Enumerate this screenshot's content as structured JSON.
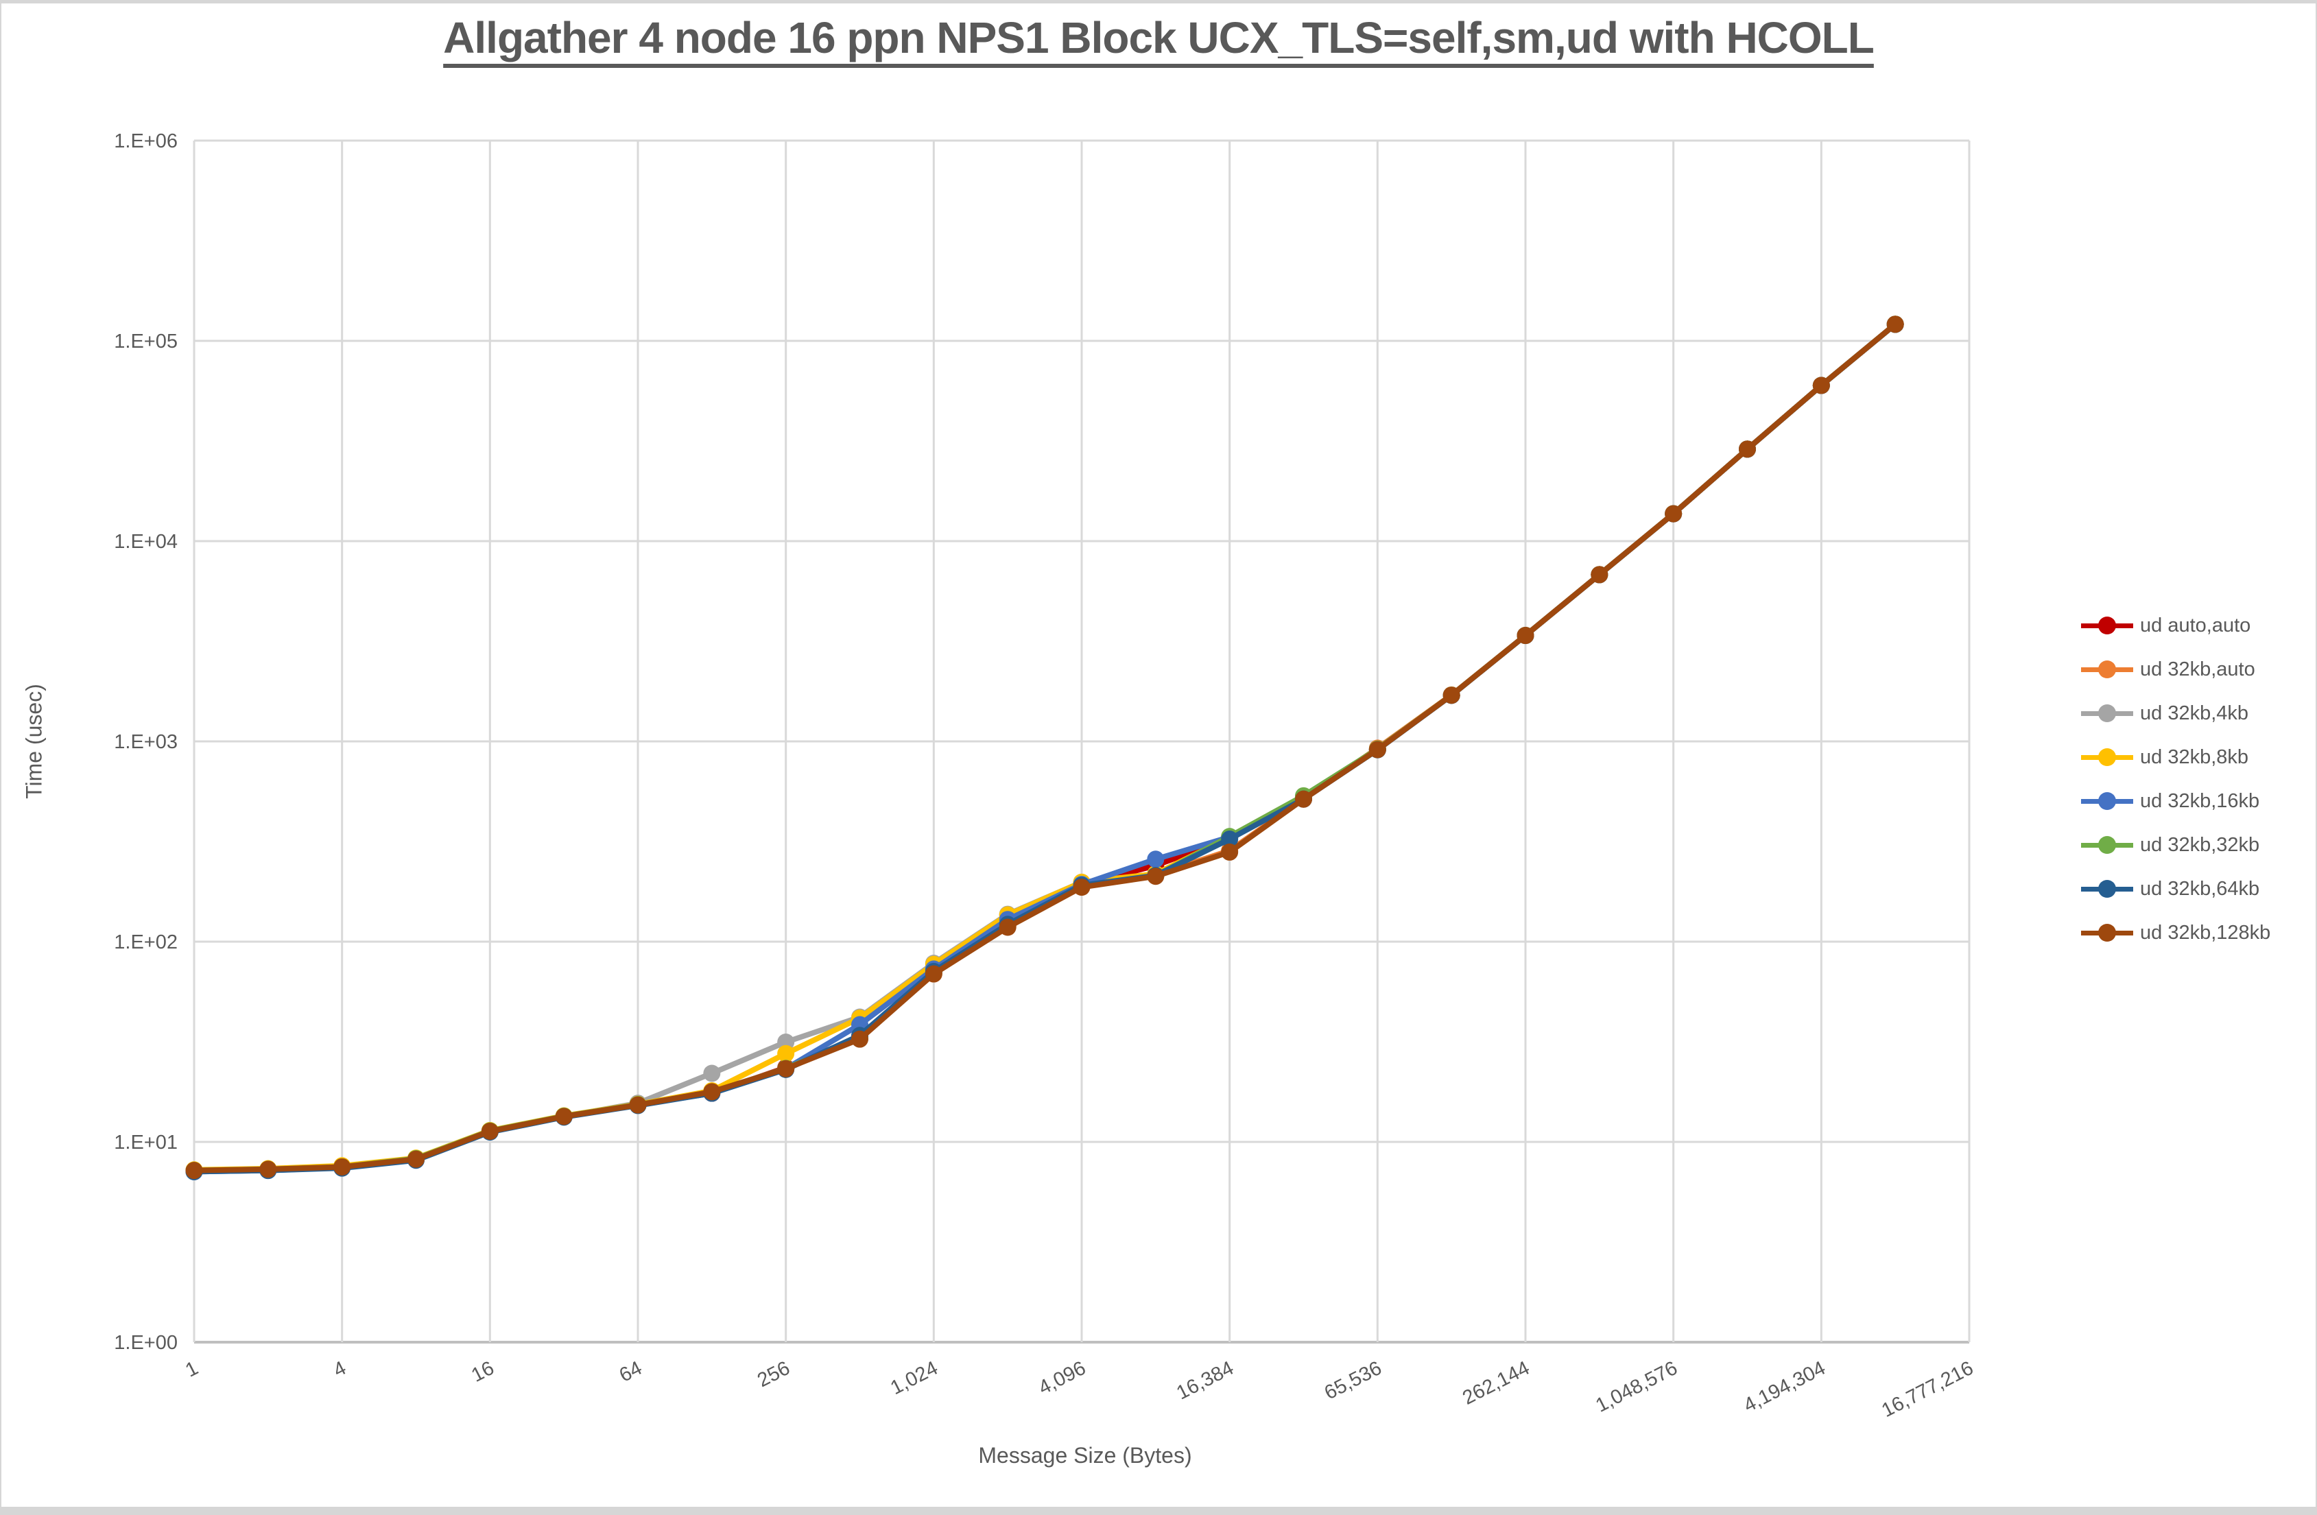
{
  "title": "Allgather 4 node 16 ppn NPS1 Block UCX_TLS=self,sm,ud with HCOLL",
  "y_axis": {
    "title": "Time (usec)",
    "tick_labels": [
      "1.E+00",
      "1.E+01",
      "1.E+02",
      "1.E+03",
      "1.E+04",
      "1.E+05",
      "1.E+06"
    ]
  },
  "x_axis": {
    "title": "Message Size (Bytes)",
    "tick_labels": [
      "1",
      "4",
      "16",
      "64",
      "256",
      "1,024",
      "4,096",
      "16,384",
      "65,536",
      "262,144",
      "1,048,576",
      "4,194,304",
      "16,777,216"
    ]
  },
  "legend": {
    "items": [
      {
        "label": "ud auto,auto",
        "color": "#C00000"
      },
      {
        "label": "ud 32kb,auto",
        "color": "#ED7D31"
      },
      {
        "label": "ud 32kb,4kb",
        "color": "#A5A5A5"
      },
      {
        "label": "ud 32kb,8kb",
        "color": "#FFC000"
      },
      {
        "label": "ud 32kb,16kb",
        "color": "#4472C4"
      },
      {
        "label": "ud 32kb,32kb",
        "color": "#70AD47"
      },
      {
        "label": "ud 32kb,64kb",
        "color": "#255E91"
      },
      {
        "label": "ud 32kb,128kb",
        "color": "#9E480E"
      }
    ]
  },
  "chart_data": {
    "type": "line",
    "x_scale": "log2-category",
    "y_scale": "log10",
    "title": "Allgather 4 node 16 ppn NPS1 Block UCX_TLS=self,sm,ud with HCOLL",
    "xlabel": "Message Size (Bytes)",
    "ylabel": "Time (usec)",
    "ylim": [
      1,
      1000000
    ],
    "x_axis_slots": 25,
    "x_axis_last_category": 16777216,
    "grid": true,
    "legend_position": "right",
    "categories": [
      1,
      2,
      4,
      8,
      16,
      32,
      64,
      128,
      256,
      512,
      1024,
      2048,
      4096,
      8192,
      16384,
      32768,
      65536,
      131072,
      262144,
      524288,
      1048576,
      2097152,
      4194304,
      8388608
    ],
    "series": [
      {
        "name": "ud auto,auto",
        "color": "#C00000",
        "values": [
          7.2,
          7.3,
          7.5,
          8.2,
          11.3,
          13.4,
          15.3,
          17.5,
          23.5,
          33.5,
          70,
          120,
          192,
          240,
          330,
          515,
          910,
          1700,
          3380,
          6800,
          13700,
          28800,
          59900,
          121000
        ]
      },
      {
        "name": "ud 32kb,auto",
        "color": "#ED7D31",
        "values": [
          7.2,
          7.3,
          7.5,
          8.2,
          11.3,
          13.4,
          15.3,
          17.6,
          23.2,
          33.0,
          69,
          119,
          189,
          215,
          285,
          515,
          925,
          1705,
          3385,
          6810,
          13720,
          28830,
          59950,
          121100
        ]
      },
      {
        "name": "ud 32kb,4kb",
        "color": "#A5A5A5",
        "values": [
          7.2,
          7.3,
          7.5,
          8.2,
          11.3,
          13.4,
          15.6,
          22.0,
          31.5,
          42.0,
          78,
          137,
          198,
          213,
          330,
          515,
          910,
          1700,
          3380,
          6800,
          13700,
          28800,
          59900,
          121000
        ]
      },
      {
        "name": "ud 32kb,8kb",
        "color": "#FFC000",
        "values": [
          7.25,
          7.35,
          7.6,
          8.3,
          11.4,
          13.5,
          15.4,
          18.0,
          27.6,
          41.5,
          77,
          136,
          198,
          218,
          332,
          518,
          912,
          1702,
          3382,
          6805,
          13710,
          28810,
          59920,
          121050
        ]
      },
      {
        "name": "ud 32kb,16kb",
        "color": "#4472C4",
        "values": [
          7.1,
          7.2,
          7.45,
          8.15,
          11.25,
          13.35,
          15.25,
          17.6,
          23.2,
          38.5,
          73,
          129,
          193,
          258,
          333,
          520,
          910,
          1700,
          3380,
          6800,
          13700,
          28800,
          59900,
          121000
        ]
      },
      {
        "name": "ud 32kb,32kb",
        "color": "#70AD47",
        "values": [
          7.2,
          7.3,
          7.5,
          8.25,
          11.35,
          13.45,
          15.35,
          17.7,
          23.3,
          33.0,
          70,
          120,
          190,
          213,
          335,
          535,
          915,
          1700,
          3380,
          6800,
          13700,
          28800,
          59900,
          121000
        ]
      },
      {
        "name": "ud 32kb,64kb",
        "color": "#255E91",
        "values": [
          7.1,
          7.2,
          7.4,
          8.1,
          11.2,
          13.3,
          15.2,
          17.5,
          23.0,
          34.0,
          71,
          122,
          191,
          214,
          325,
          515,
          908,
          1698,
          3378,
          6798,
          13690,
          28790,
          59880,
          120900
        ]
      },
      {
        "name": "ud 32kb,128kb",
        "color": "#9E480E",
        "values": [
          7.2,
          7.3,
          7.5,
          8.2,
          11.3,
          13.4,
          15.3,
          17.8,
          23.2,
          32.6,
          69,
          118,
          187,
          212,
          280,
          515,
          910,
          1700,
          3380,
          6800,
          13700,
          28800,
          59900,
          121000
        ]
      }
    ]
  }
}
